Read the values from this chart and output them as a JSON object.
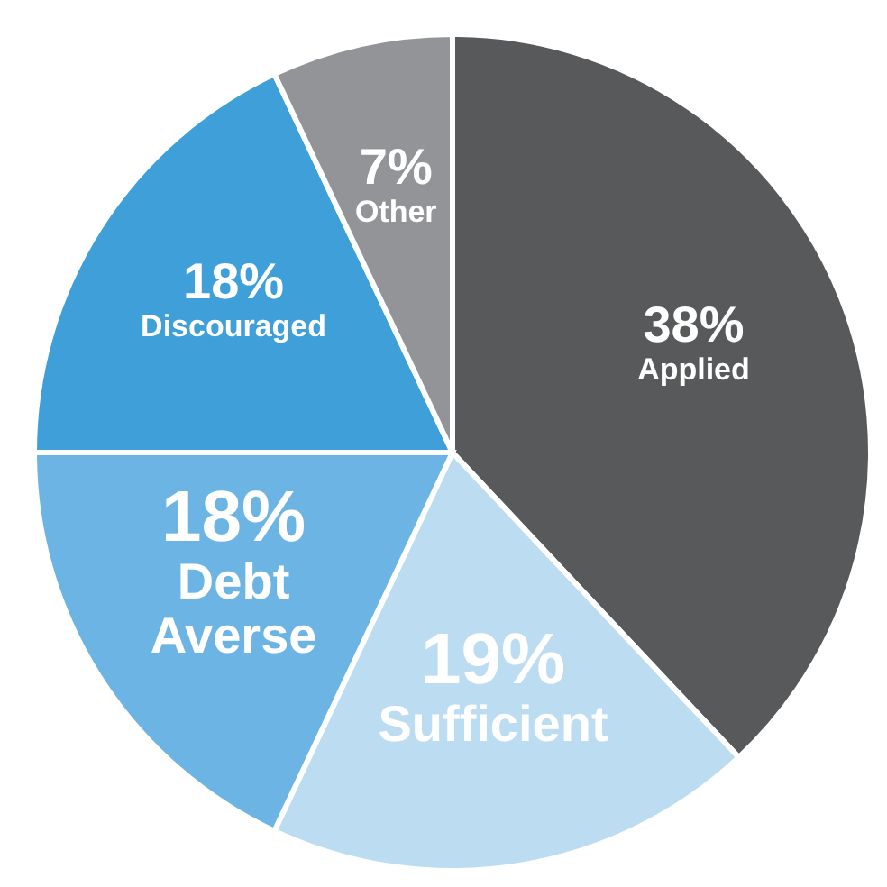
{
  "chart_data": {
    "type": "pie",
    "categories": [
      "Applied",
      "Sufficient",
      "Debt Averse",
      "Discouraged",
      "Other"
    ],
    "values": [
      38,
      19,
      18,
      18,
      7
    ],
    "colors": [
      "#58595b",
      "#bcdcf2",
      "#6cb4e3",
      "#3e9fd9",
      "#929497"
    ],
    "value_labels": [
      "38%",
      "19%",
      "18%",
      "18%",
      "7%"
    ]
  }
}
